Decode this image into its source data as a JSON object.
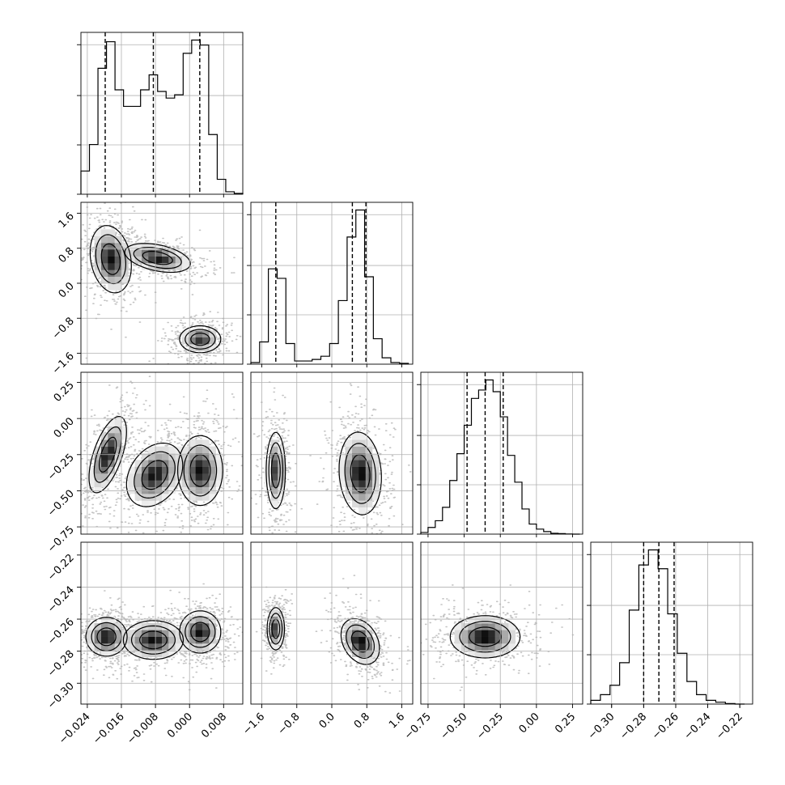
{
  "chart_data": {
    "type": "corner",
    "parameters": 4,
    "grid": true,
    "axes": [
      {
        "ticks": [
          -0.024,
          -0.016,
          -0.008,
          0.0,
          0.008
        ],
        "tick_labels": [
          "−0.024",
          "−0.016",
          "−0.008",
          "0.000",
          "0.008"
        ],
        "range": [
          -0.0255,
          0.0125
        ]
      },
      {
        "ticks": [
          -1.6,
          -0.8,
          0.0,
          0.8,
          1.6
        ],
        "tick_labels": [
          "−1.6",
          "−0.8",
          "0.0",
          "0.8",
          "1.6"
        ],
        "range": [
          -1.85,
          1.85
        ]
      },
      {
        "ticks": [
          -0.75,
          -0.5,
          -0.25,
          0.0,
          0.25
        ],
        "tick_labels": [
          "−0.75",
          "−0.50",
          "−0.25",
          "0.00",
          "0.25"
        ],
        "range": [
          -0.8,
          0.32
        ]
      },
      {
        "ticks": [
          -0.3,
          -0.28,
          -0.26,
          -0.24,
          -0.22
        ],
        "tick_labels": [
          "−0.30",
          "−0.28",
          "−0.26",
          "−0.24",
          "−0.22"
        ],
        "range": [
          -0.313,
          -0.212
        ]
      }
    ],
    "quantiles": [
      [
        -0.0198,
        -0.0085,
        0.0024
      ],
      [
        -1.28,
        0.47,
        0.78
      ],
      [
        -0.48,
        -0.355,
        -0.23
      ],
      [
        -0.28,
        -0.2705,
        -0.261
      ]
    ],
    "histograms": [
      {
        "edges": [
          -0.0255,
          -0.0235,
          -0.0215,
          -0.0195,
          -0.0175,
          -0.0155,
          -0.0135,
          -0.0115,
          -0.0095,
          -0.0075,
          -0.0055,
          -0.0035,
          -0.0015,
          0.0005,
          0.0025,
          0.0045,
          0.0065,
          0.0085,
          0.0105,
          0.0125
        ],
        "counts": [
          0.14,
          0.3,
          0.76,
          0.92,
          0.63,
          0.53,
          0.53,
          0.63,
          0.72,
          0.62,
          0.58,
          0.6,
          0.85,
          0.93,
          0.9,
          0.36,
          0.09,
          0.015,
          0.005
        ]
      },
      {
        "edges": [
          -1.85,
          -1.65,
          -1.45,
          -1.25,
          -1.05,
          -0.85,
          -0.65,
          -0.45,
          -0.25,
          -0.05,
          0.15,
          0.35,
          0.55,
          0.75,
          0.95,
          1.15,
          1.35,
          1.55,
          1.75
        ],
        "counts": [
          0.01,
          0.14,
          0.6,
          0.54,
          0.13,
          0.02,
          0.02,
          0.03,
          0.05,
          0.13,
          0.4,
          0.8,
          0.97,
          0.55,
          0.16,
          0.04,
          0.01,
          0.005
        ]
      },
      {
        "edges": [
          -0.8,
          -0.75,
          -0.7,
          -0.65,
          -0.6,
          -0.55,
          -0.5,
          -0.45,
          -0.4,
          -0.35,
          -0.3,
          -0.25,
          -0.2,
          -0.15,
          -0.1,
          -0.05,
          0.0,
          0.05,
          0.1,
          0.15,
          0.2,
          0.25,
          0.3
        ],
        "counts": [
          0.01,
          0.04,
          0.08,
          0.16,
          0.32,
          0.48,
          0.65,
          0.81,
          0.86,
          0.92,
          0.85,
          0.7,
          0.47,
          0.31,
          0.15,
          0.06,
          0.03,
          0.015,
          0.005,
          0.003,
          0.001,
          0.0
        ]
      },
      {
        "edges": [
          -0.313,
          -0.307,
          -0.301,
          -0.295,
          -0.289,
          -0.283,
          -0.277,
          -0.271,
          -0.265,
          -0.259,
          -0.253,
          -0.247,
          -0.241,
          -0.235,
          -0.229,
          -0.223,
          -0.217
        ],
        "counts": [
          0.02,
          0.05,
          0.1,
          0.22,
          0.5,
          0.74,
          0.82,
          0.72,
          0.48,
          0.27,
          0.12,
          0.05,
          0.02,
          0.01,
          0.003,
          0.0
        ]
      }
    ],
    "joint_clusters": {
      "1_0": [
        {
          "cx": -0.0185,
          "cy": 0.55,
          "sx": 0.0022,
          "sy": 0.35,
          "rho": -0.2,
          "w": 1.0
        },
        {
          "cx": -0.0075,
          "cy": 0.58,
          "sx": 0.0035,
          "sy": 0.15,
          "rho": -0.4,
          "w": 1.0
        },
        {
          "cx": 0.0025,
          "cy": -1.28,
          "sx": 0.0022,
          "sy": 0.14,
          "rho": 0.0,
          "w": 0.9
        }
      ],
      "2_0": [
        {
          "cx": -0.0192,
          "cy": -0.25,
          "sx": 0.002,
          "sy": 0.12,
          "rho": 0.6,
          "w": 1.0
        },
        {
          "cx": -0.0082,
          "cy": -0.39,
          "sx": 0.003,
          "sy": 0.1,
          "rho": 0.3,
          "w": 1.0
        },
        {
          "cx": 0.0025,
          "cy": -0.36,
          "sx": 0.0024,
          "sy": 0.11,
          "rho": 0.0,
          "w": 1.0
        }
      ],
      "2_1": [
        {
          "cx": -1.28,
          "cy": -0.36,
          "sx": 0.1,
          "sy": 0.12,
          "rho": 0.0,
          "w": 0.85
        },
        {
          "cx": 0.65,
          "cy": -0.38,
          "sx": 0.22,
          "sy": 0.13,
          "rho": -0.1,
          "w": 1.0
        }
      ],
      "3_0": [
        {
          "cx": -0.0195,
          "cy": -0.271,
          "sx": 0.0022,
          "sy": 0.0055,
          "rho": 0.0,
          "w": 1.0
        },
        {
          "cx": -0.0085,
          "cy": -0.273,
          "sx": 0.0032,
          "sy": 0.0055,
          "rho": 0.0,
          "w": 1.0
        },
        {
          "cx": 0.0025,
          "cy": -0.268,
          "sx": 0.0022,
          "sy": 0.006,
          "rho": 0.0,
          "w": 1.0
        }
      ],
      "3_1": [
        {
          "cx": -1.28,
          "cy": -0.266,
          "sx": 0.09,
          "sy": 0.006,
          "rho": 0.0,
          "w": 0.85
        },
        {
          "cx": 0.65,
          "cy": -0.274,
          "sx": 0.2,
          "sy": 0.0065,
          "rho": -0.3,
          "w": 1.0
        }
      ],
      "3_2": [
        {
          "cx": -0.355,
          "cy": -0.271,
          "sx": 0.11,
          "sy": 0.006,
          "rho": 0.0,
          "w": 1.0
        }
      ]
    }
  }
}
